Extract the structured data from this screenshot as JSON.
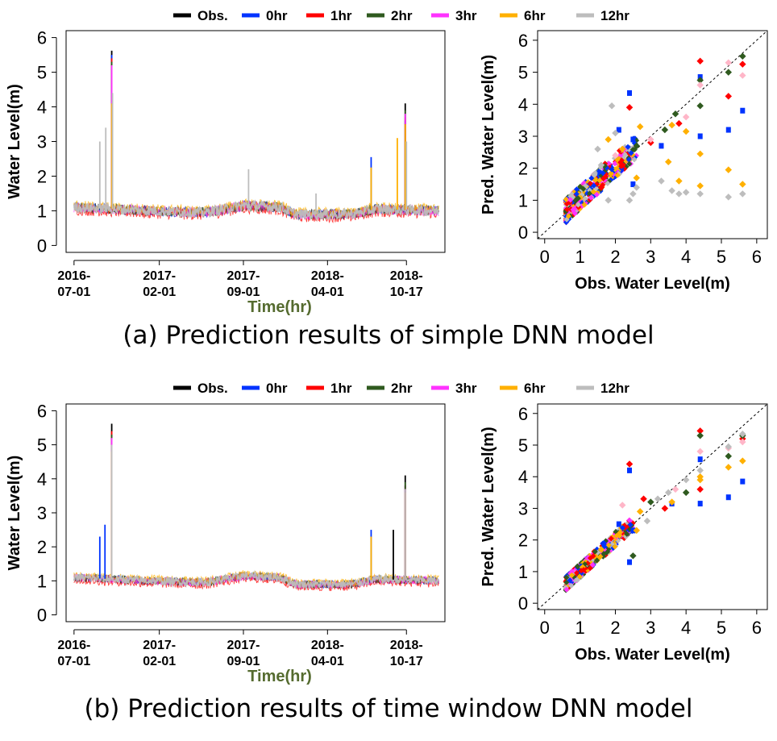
{
  "legend": {
    "entries": [
      {
        "label": "Obs.",
        "color": "#000000"
      },
      {
        "label": "0hr",
        "color": "#0033ff"
      },
      {
        "label": "1hr",
        "color": "#ff0000"
      },
      {
        "label": "2hr",
        "color": "#2f5a1f"
      },
      {
        "label": "3hr",
        "color": "#ff33ff"
      },
      {
        "label": "6hr",
        "color": "#ffb000"
      },
      {
        "label": "12hr",
        "color": "#bdbdbd"
      }
    ]
  },
  "captions": {
    "a": "(a) Prediction results of simple DNN model",
    "b": "(b) Prediction results of time window DNN model"
  },
  "chart_data": [
    {
      "id": "a-timeseries",
      "type": "line",
      "title": "",
      "xlabel": "Time(hr)",
      "ylabel": "Water Level(m)",
      "ylim": [
        -0.2,
        6.2
      ],
      "yticks": [
        0,
        1,
        2,
        3,
        4,
        5,
        6
      ],
      "xticks": [
        {
          "day": 0,
          "line1": "2016-",
          "line2": "07-01"
        },
        {
          "day": 215,
          "line1": "2017-",
          "line2": "02-01"
        },
        {
          "day": 427,
          "line1": "2017-",
          "line2": "09-01"
        },
        {
          "day": 639,
          "line1": "2018-",
          "line2": "04-01"
        },
        {
          "day": 838,
          "line1": "2018-",
          "line2": "10-17"
        }
      ],
      "xlim": [
        -20,
        935
      ],
      "baseline": {
        "start": 1.1,
        "amplitude": 0.15,
        "seasonal": [
          [
            0,
            1.1
          ],
          [
            200,
            1.0
          ],
          [
            330,
            0.95
          ],
          [
            430,
            1.15
          ],
          [
            520,
            1.1
          ],
          [
            560,
            0.9
          ],
          [
            700,
            0.9
          ],
          [
            760,
            1.05
          ],
          [
            920,
            1.0
          ]
        ]
      },
      "series": [
        {
          "name": "Obs.",
          "peaks": [
            [
              95,
              5.62
            ],
            [
              835,
              4.1
            ]
          ]
        },
        {
          "name": "0hr",
          "peaks": [
            [
              95,
              5.5
            ],
            [
              749,
              2.55
            ],
            [
              835,
              3.6
            ]
          ]
        },
        {
          "name": "1hr",
          "peaks": [
            [
              95,
              5.4
            ],
            [
              835,
              3.7
            ]
          ]
        },
        {
          "name": "2hr",
          "peaks": [
            [
              95,
              5.3
            ],
            [
              835,
              3.9
            ]
          ]
        },
        {
          "name": "3hr",
          "peaks": [
            [
              95,
              5.2
            ],
            [
              835,
              3.8
            ]
          ]
        },
        {
          "name": "6hr",
          "peaks": [
            [
              95,
              4.1
            ],
            [
              749,
              2.25
            ],
            [
              815,
              3.1
            ],
            [
              835,
              3.5
            ]
          ]
        },
        {
          "name": "12hr",
          "peaks": [
            [
              65,
              3.0
            ],
            [
              80,
              3.4
            ],
            [
              97,
              4.4
            ],
            [
              440,
              2.2
            ],
            [
              610,
              1.5
            ],
            [
              838,
              3.0
            ]
          ]
        }
      ]
    },
    {
      "id": "a-scatter",
      "type": "scatter",
      "title": "",
      "xlabel": "Obs. Water Level(m)",
      "ylabel": "Pred. Water Level(m)",
      "xlim": [
        -0.2,
        6.3
      ],
      "ylim": [
        -0.2,
        6.3
      ],
      "xticks": [
        0,
        1,
        2,
        3,
        4,
        5,
        6
      ],
      "yticks": [
        0,
        1,
        2,
        3,
        4,
        5,
        6
      ],
      "diagonal": true,
      "series": [
        {
          "name": "0hr",
          "points": [
            [
              2.4,
              4.35
            ],
            [
              4.4,
              4.85
            ],
            [
              5.2,
              3.2
            ],
            [
              5.6,
              3.8
            ],
            [
              4.4,
              3.0
            ],
            [
              3.3,
              2.7
            ],
            [
              2.5,
              1.5
            ],
            [
              2.1,
              3.2
            ],
            [
              2.5,
              2.9
            ]
          ]
        },
        {
          "name": "1hr",
          "points": [
            [
              4.4,
              5.35
            ],
            [
              5.6,
              5.25
            ],
            [
              5.2,
              4.25
            ],
            [
              2.4,
              3.9
            ],
            [
              3.8,
              3.4
            ],
            [
              3.0,
              2.8
            ],
            [
              2.2,
              2.1
            ],
            [
              1.6,
              1.4
            ]
          ]
        },
        {
          "name": "2hr",
          "points": [
            [
              5.6,
              5.5
            ],
            [
              5.2,
              5.0
            ],
            [
              4.4,
              4.75
            ],
            [
              4.4,
              3.95
            ],
            [
              3.7,
              3.7
            ],
            [
              3.4,
              3.2
            ],
            [
              2.6,
              2.7
            ]
          ]
        },
        {
          "name": "3hr",
          "points": [
            [
              5.6,
              4.9
            ],
            [
              5.2,
              5.3
            ],
            [
              4.4,
              4.6
            ],
            [
              4.0,
              3.6
            ],
            [
              3.0,
              2.9
            ],
            [
              2.0,
              2.4
            ]
          ]
        },
        {
          "name": "6hr",
          "points": [
            [
              5.6,
              1.5
            ],
            [
              5.2,
              1.95
            ],
            [
              4.4,
              1.45
            ],
            [
              4.4,
              2.45
            ],
            [
              3.8,
              1.6
            ],
            [
              4.0,
              3.15
            ],
            [
              3.6,
              3.35
            ],
            [
              2.6,
              1.7
            ],
            [
              2.2,
              2.6
            ],
            [
              1.8,
              2.9
            ],
            [
              2.7,
              3.3
            ],
            [
              3.5,
              2.2
            ]
          ]
        },
        {
          "name": "12hr",
          "points": [
            [
              5.6,
              1.2
            ],
            [
              5.2,
              1.1
            ],
            [
              4.4,
              1.2
            ],
            [
              4.0,
              1.25
            ],
            [
              3.8,
              1.2
            ],
            [
              3.6,
              1.3
            ],
            [
              3.3,
              1.6
            ],
            [
              2.6,
              1.4
            ],
            [
              2.5,
              1.2
            ],
            [
              2.4,
              1.0
            ],
            [
              1.8,
              1.0
            ],
            [
              1.4,
              1.8
            ],
            [
              1.6,
              2.1
            ],
            [
              1.9,
              3.95
            ],
            [
              2.0,
              3.1
            ],
            [
              1.5,
              2.6
            ]
          ]
        }
      ],
      "cloud": {
        "x_range": [
          0.6,
          2.6
        ],
        "y_offset_range": [
          -0.3,
          0.45
        ]
      }
    },
    {
      "id": "b-timeseries",
      "type": "line",
      "title": "",
      "xlabel": "Time(hr)",
      "ylabel": "Water Level(m)",
      "ylim": [
        -0.2,
        6.2
      ],
      "yticks": [
        0,
        1,
        2,
        3,
        4,
        5,
        6
      ],
      "xticks": [
        {
          "day": 0,
          "line1": "2016-",
          "line2": "07-01"
        },
        {
          "day": 215,
          "line1": "2017-",
          "line2": "02-01"
        },
        {
          "day": 427,
          "line1": "2017-",
          "line2": "09-01"
        },
        {
          "day": 639,
          "line1": "2018-",
          "line2": "04-01"
        },
        {
          "day": 838,
          "line1": "2018-",
          "line2": "10-17"
        }
      ],
      "xlim": [
        -20,
        935
      ],
      "baseline": {
        "start": 1.1,
        "amplitude": 0.12,
        "seasonal": [
          [
            0,
            1.1
          ],
          [
            200,
            1.0
          ],
          [
            330,
            0.95
          ],
          [
            430,
            1.15
          ],
          [
            520,
            1.1
          ],
          [
            560,
            0.9
          ],
          [
            700,
            0.9
          ],
          [
            760,
            1.05
          ],
          [
            920,
            1.0
          ]
        ]
      },
      "series": [
        {
          "name": "Obs.",
          "peaks": [
            [
              95,
              5.62
            ],
            [
              805,
              2.5
            ],
            [
              835,
              4.1
            ]
          ]
        },
        {
          "name": "0hr",
          "peaks": [
            [
              65,
              2.3
            ],
            [
              78,
              2.65
            ],
            [
              749,
              2.5
            ],
            [
              835,
              3.8
            ]
          ]
        },
        {
          "name": "1hr",
          "peaks": [
            [
              95,
              5.4
            ],
            [
              835,
              3.8
            ]
          ]
        },
        {
          "name": "2hr",
          "peaks": [
            [
              95,
              5.3
            ],
            [
              835,
              3.9
            ]
          ]
        },
        {
          "name": "3hr",
          "peaks": [
            [
              95,
              5.2
            ],
            [
              835,
              3.7
            ]
          ]
        },
        {
          "name": "6hr",
          "peaks": [
            [
              95,
              4.8
            ],
            [
              749,
              2.3
            ],
            [
              835,
              3.6
            ]
          ]
        },
        {
          "name": "12hr",
          "peaks": [
            [
              95,
              5.0
            ],
            [
              835,
              3.7
            ]
          ]
        }
      ]
    },
    {
      "id": "b-scatter",
      "type": "scatter",
      "title": "",
      "xlabel": "Obs. Water Level(m)",
      "ylabel": "Pred. Water Level(m)",
      "xlim": [
        -0.2,
        6.3
      ],
      "ylim": [
        -0.2,
        6.3
      ],
      "xticks": [
        0,
        1,
        2,
        3,
        4,
        5,
        6
      ],
      "yticks": [
        0,
        1,
        2,
        3,
        4,
        5,
        6
      ],
      "diagonal": true,
      "series": [
        {
          "name": "0hr",
          "points": [
            [
              2.4,
              4.2
            ],
            [
              4.4,
              3.15
            ],
            [
              5.2,
              3.35
            ],
            [
              5.6,
              3.85
            ],
            [
              4.4,
              4.55
            ],
            [
              3.6,
              3.15
            ],
            [
              2.4,
              1.3
            ],
            [
              2.1,
              2.5
            ],
            [
              2.5,
              2.3
            ]
          ]
        },
        {
          "name": "1hr",
          "points": [
            [
              4.4,
              5.45
            ],
            [
              2.4,
              4.4
            ],
            [
              5.6,
              5.2
            ],
            [
              4.4,
              3.6
            ],
            [
              2.8,
              3.3
            ],
            [
              3.4,
              3.0
            ]
          ]
        },
        {
          "name": "2hr",
          "points": [
            [
              4.4,
              5.3
            ],
            [
              5.6,
              5.3
            ],
            [
              5.2,
              4.65
            ],
            [
              3.0,
              3.2
            ],
            [
              2.5,
              1.5
            ],
            [
              4.0,
              3.5
            ]
          ]
        },
        {
          "name": "3hr",
          "points": [
            [
              4.4,
              4.8
            ],
            [
              5.6,
              5.1
            ],
            [
              5.2,
              4.9
            ],
            [
              3.7,
              3.6
            ],
            [
              2.2,
              3.1
            ]
          ]
        },
        {
          "name": "6hr",
          "points": [
            [
              5.6,
              4.5
            ],
            [
              5.2,
              4.3
            ],
            [
              4.4,
              4.0
            ],
            [
              4.4,
              3.9
            ],
            [
              3.6,
              3.2
            ],
            [
              2.6,
              2.3
            ],
            [
              2.7,
              2.9
            ],
            [
              1.6,
              1.7
            ]
          ]
        },
        {
          "name": "12hr",
          "points": [
            [
              5.6,
              5.35
            ],
            [
              5.2,
              4.95
            ],
            [
              4.4,
              4.2
            ],
            [
              4.0,
              3.9
            ],
            [
              3.5,
              3.5
            ],
            [
              3.2,
              3.3
            ],
            [
              2.9,
              2.6
            ]
          ]
        }
      ],
      "cloud": {
        "x_range": [
          0.6,
          2.5
        ],
        "y_offset_range": [
          -0.2,
          0.25
        ]
      }
    }
  ]
}
